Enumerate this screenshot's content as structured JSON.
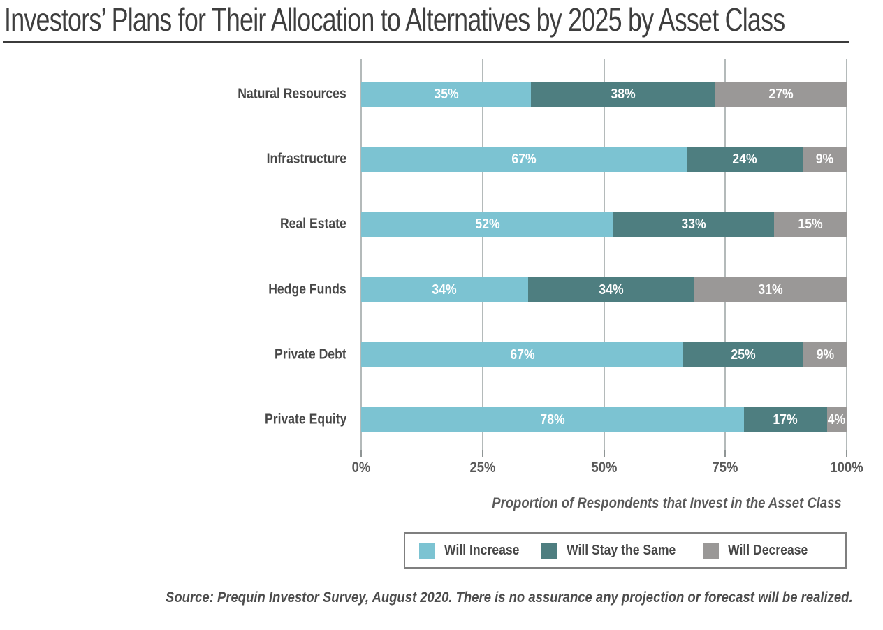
{
  "page": {
    "title": "Investors’ Plans for Their Allocation to Alternatives by 2025 by Asset Class",
    "source_note": "Source: Prequin Investor Survey, August 2020. There is no assurance any projection or forecast will be realized."
  },
  "chart_data": {
    "type": "bar",
    "orientation": "horizontal",
    "stacked": true,
    "categories": [
      "Natural Resources",
      "Infrastructure",
      "Real Estate",
      "Hedge Funds",
      "Private Debt",
      "Private Equity"
    ],
    "series": [
      {
        "name": "Will Increase",
        "color": "#7cc3d2",
        "values": [
          35,
          67,
          52,
          34,
          67,
          78
        ]
      },
      {
        "name": "Will Stay the Same",
        "color": "#4e7e80",
        "values": [
          38,
          24,
          33,
          34,
          25,
          17
        ]
      },
      {
        "name": "Will Decrease",
        "color": "#9a9897",
        "values": [
          27,
          9,
          15,
          31,
          9,
          4
        ]
      }
    ],
    "value_suffix": "%",
    "bar_label_color": "#ffffff",
    "xlabel": "Proportion of Respondents that Invest in the Asset Class",
    "x_ticks": [
      "0%",
      "25%",
      "50%",
      "75%",
      "100%"
    ],
    "xlim": [
      0,
      100
    ],
    "grid": true,
    "legend_position": "bottom"
  }
}
